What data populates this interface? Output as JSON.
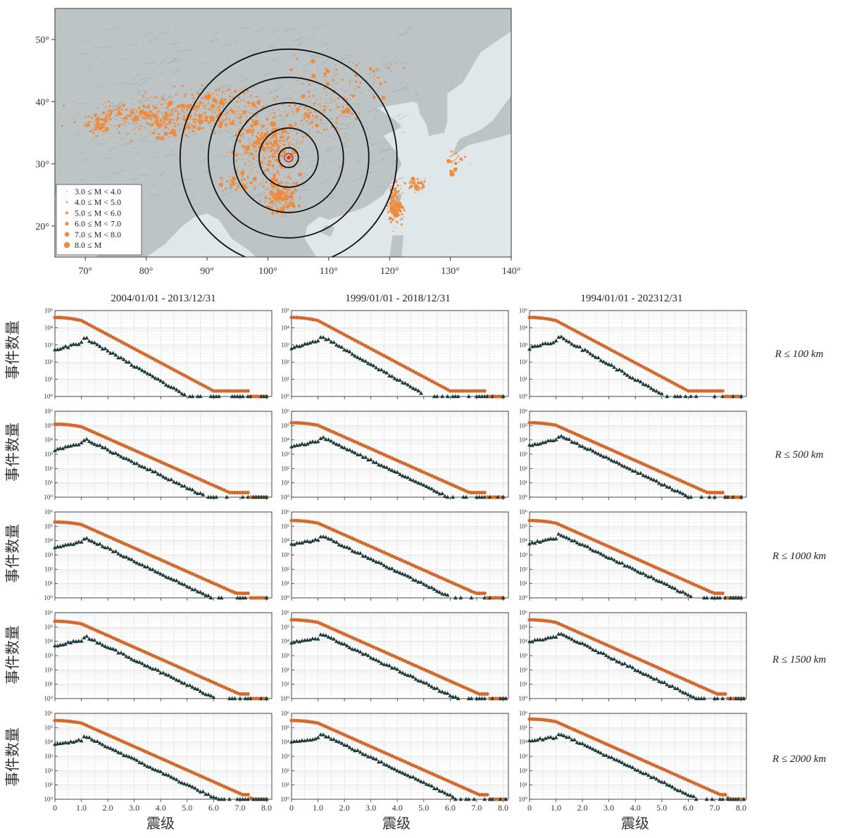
{
  "colors": {
    "cumulative": "#d2692e",
    "non_cumulative": "#1d3b3b",
    "map_land": "#bcc4c6",
    "map_sea": "#dfe7ea",
    "quake": "#f08a3c",
    "ring": "#111111",
    "epicenter": "#c0392b"
  },
  "map": {
    "lon_ticks": [
      "70°",
      "80°",
      "90°",
      "100°",
      "110°",
      "120°",
      "130°",
      "140°"
    ],
    "lat_ticks": [
      "20°",
      "30°",
      "40°",
      "50°"
    ],
    "legend": [
      "3.0 ≤ M < 4.0",
      "4.0 ≤ M < 5.0",
      "5.0 ≤ M < 6.0",
      "6.0 ≤ M < 7.0",
      "7.0 ≤ M < 8.0",
      "8.0 ≤ M"
    ],
    "rings_km": [
      100,
      500,
      1000,
      1500,
      2000
    ]
  },
  "columns": [
    "2004/01/01 - 2013/12/31",
    "1999/01/01 - 2018/12/31",
    "1994/01/01 - 202312/31"
  ],
  "rows": [
    "R ≤ 100 km",
    "R ≤ 500 km",
    "R ≤ 1000 km",
    "R ≤ 1500 km",
    "R ≤ 2000 km"
  ],
  "ylabel": "事件数量",
  "xlabel": "震级",
  "chart_data": {
    "type": "scatter",
    "x_range": [
      0,
      8.2
    ],
    "x_ticks": [
      "0",
      "1.0",
      "2.0",
      "3.0",
      "4.0",
      "5.0",
      "6.0",
      "7.0",
      "8.0"
    ],
    "y_scale": "log",
    "y_range_exp": [
      0,
      5
    ],
    "y_ticks": [
      "10⁰",
      "10¹",
      "10²",
      "10³",
      "10⁴",
      "10⁵"
    ],
    "series_styles": [
      {
        "marker": "circle",
        "color": "#d2692e",
        "role": "cumulative"
      },
      {
        "marker": "triangle",
        "color": "#1d3b3b",
        "role": "non-cumulative"
      }
    ],
    "panels": [
      {
        "row": 0,
        "col": 0,
        "logNc0": 4.6,
        "logN0": 2.7,
        "logPeak": 3.35,
        "mmax": 8.0
      },
      {
        "row": 0,
        "col": 1,
        "logNc0": 4.6,
        "logN0": 2.8,
        "logPeak": 3.45,
        "mmax": 8.0
      },
      {
        "row": 0,
        "col": 2,
        "logNc0": 4.6,
        "logN0": 2.8,
        "logPeak": 3.45,
        "mmax": 8.0
      },
      {
        "row": 1,
        "col": 0,
        "logNc0": 5.1,
        "logN0": 3.3,
        "logPeak": 4.0,
        "mmax": 8.0
      },
      {
        "row": 1,
        "col": 1,
        "logNc0": 5.2,
        "logN0": 3.5,
        "logPeak": 4.15,
        "mmax": 8.0
      },
      {
        "row": 1,
        "col": 2,
        "logNc0": 5.2,
        "logN0": 3.6,
        "logPeak": 4.25,
        "mmax": 8.0
      },
      {
        "row": 2,
        "col": 0,
        "logNc0": 5.3,
        "logN0": 3.5,
        "logPeak": 4.15,
        "mmax": 8.0
      },
      {
        "row": 2,
        "col": 1,
        "logNc0": 5.4,
        "logN0": 3.7,
        "logPeak": 4.3,
        "mmax": 8.0
      },
      {
        "row": 2,
        "col": 2,
        "logNc0": 5.4,
        "logN0": 3.8,
        "logPeak": 4.4,
        "mmax": 8.0
      },
      {
        "row": 3,
        "col": 0,
        "logNc0": 5.4,
        "logN0": 3.7,
        "logPeak": 4.3,
        "mmax": 8.0
      },
      {
        "row": 3,
        "col": 1,
        "logNc0": 5.5,
        "logN0": 3.9,
        "logPeak": 4.45,
        "mmax": 8.1
      },
      {
        "row": 3,
        "col": 2,
        "logNc0": 5.5,
        "logN0": 4.0,
        "logPeak": 4.5,
        "mmax": 8.1
      },
      {
        "row": 4,
        "col": 0,
        "logNc0": 5.5,
        "logN0": 3.8,
        "logPeak": 4.35,
        "mmax": 8.0
      },
      {
        "row": 4,
        "col": 1,
        "logNc0": 5.5,
        "logN0": 4.0,
        "logPeak": 4.5,
        "mmax": 8.1
      },
      {
        "row": 4,
        "col": 2,
        "logNc0": 5.6,
        "logN0": 4.1,
        "logPeak": 4.55,
        "mmax": 8.1
      }
    ]
  }
}
